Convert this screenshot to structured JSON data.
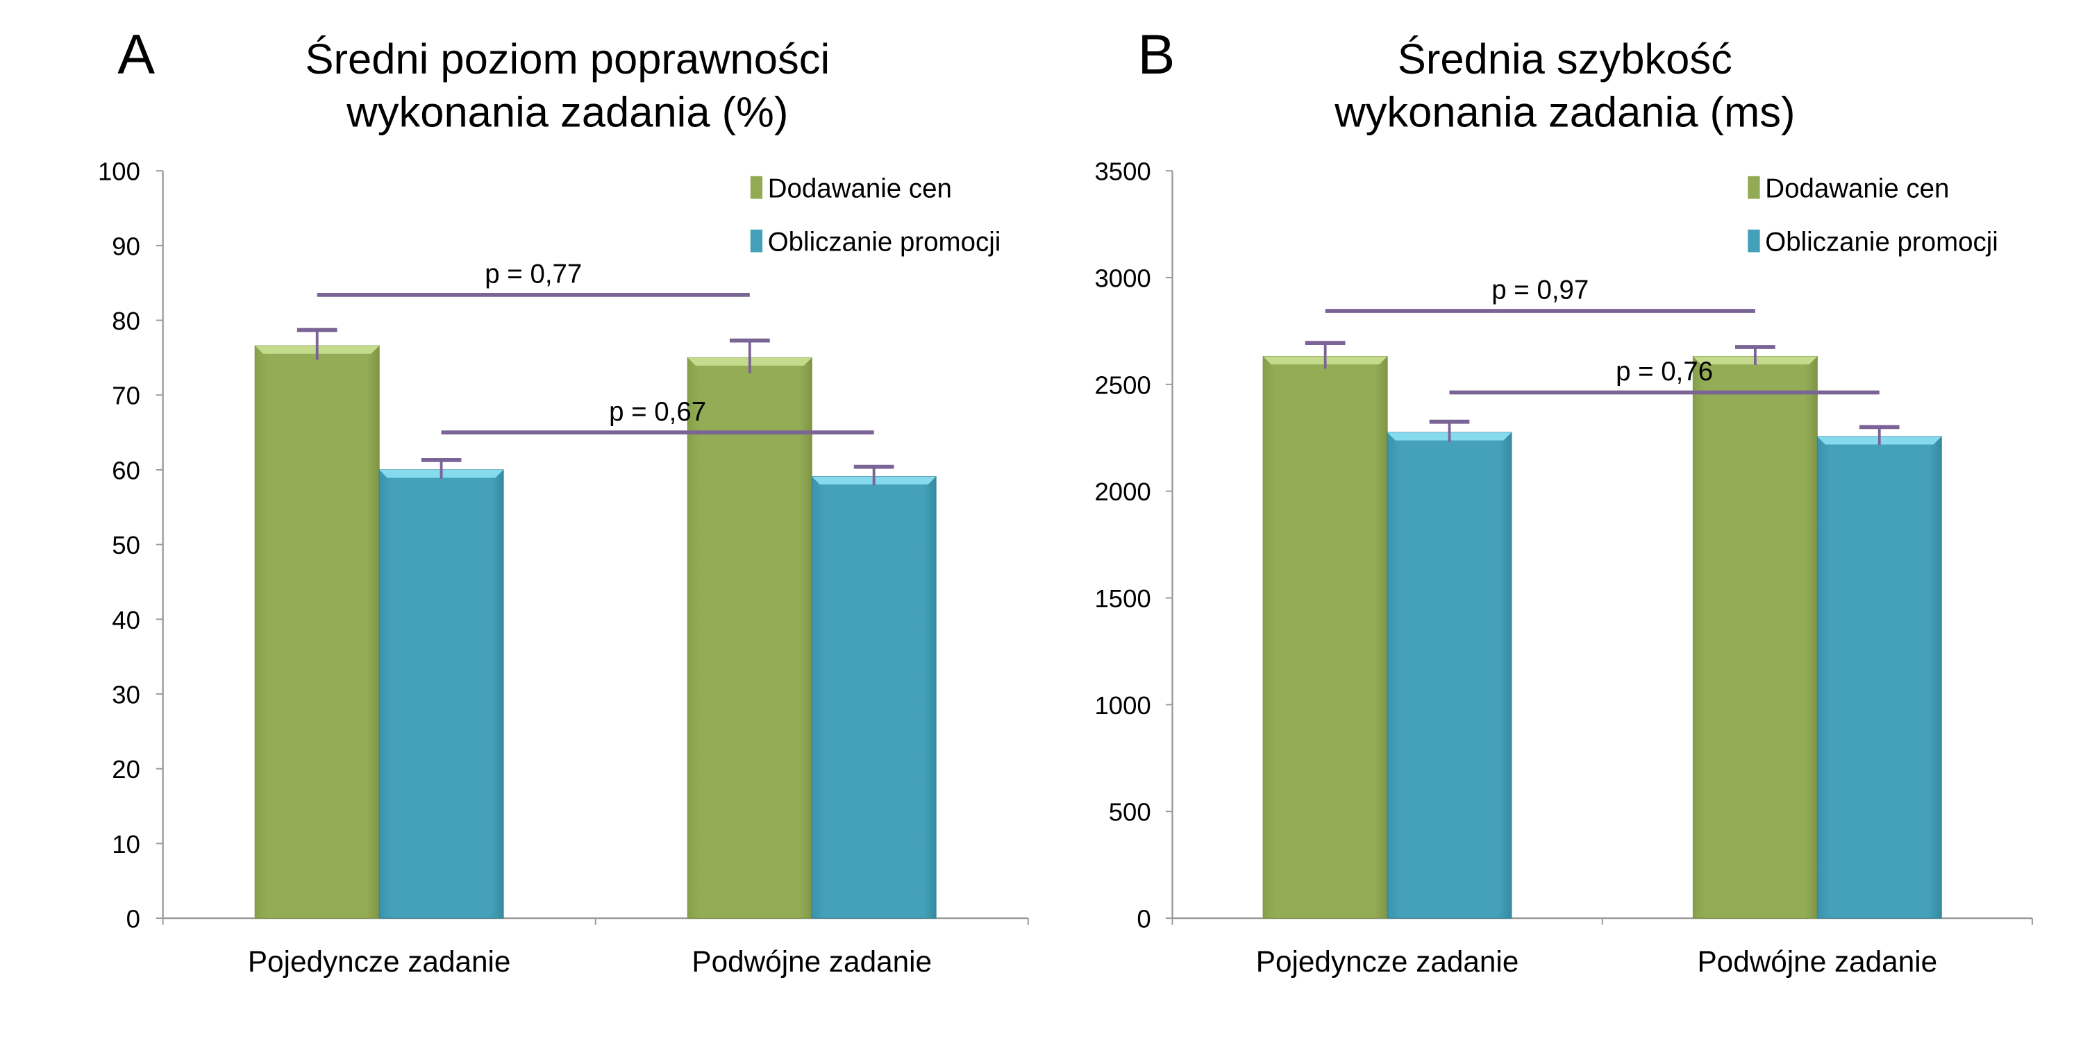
{
  "chart_data": [
    {
      "type": "bar",
      "panel_label": "A",
      "title_lines": [
        "Średni poziom poprawności",
        "wykonania zadania (%)"
      ],
      "categories": [
        "Pojedyncze zadanie",
        "Podwójne zadanie"
      ],
      "ylim": [
        0,
        100
      ],
      "yticks": [
        0,
        10,
        20,
        30,
        40,
        50,
        60,
        70,
        80,
        90,
        100
      ],
      "legend_position": "top-right",
      "series": [
        {
          "name": "Dodawanie cen",
          "color": "#93AA55",
          "values": [
            76.6,
            75.0
          ],
          "error_upper": [
            78.7,
            77.3
          ]
        },
        {
          "name": "Obliczanie promocji",
          "color": "#43A0B8",
          "values": [
            60.0,
            59.1
          ],
          "error_upper": [
            61.3,
            60.4
          ]
        }
      ],
      "annotations": [
        {
          "text": "p = 0,77",
          "y": 83.4,
          "from": [
            0,
            0
          ],
          "to": [
            1,
            0
          ]
        },
        {
          "text": "p = 0,67",
          "y": 65.0,
          "from": [
            0,
            1
          ],
          "to": [
            1,
            1
          ]
        }
      ]
    },
    {
      "type": "bar",
      "panel_label": "B",
      "title_lines": [
        "Średnia szybkość",
        "wykonania zadania (ms)"
      ],
      "categories": [
        "Pojedyncze zadanie",
        "Podwójne zadanie"
      ],
      "ylim": [
        0,
        3500
      ],
      "yticks": [
        0,
        500,
        1000,
        1500,
        2000,
        2500,
        3000,
        3500
      ],
      "legend_position": "top-right",
      "series": [
        {
          "name": "Dodawanie cen",
          "color": "#93AA55",
          "values": [
            2631,
            2631
          ],
          "error_upper": [
            2694,
            2675
          ]
        },
        {
          "name": "Obliczanie promocji",
          "color": "#43A0B8",
          "values": [
            2275,
            2256
          ],
          "error_upper": [
            2325,
            2300
          ]
        }
      ],
      "annotations": [
        {
          "text": "p = 0,97",
          "y": 2844,
          "from": [
            0,
            0
          ],
          "to": [
            1,
            0
          ]
        },
        {
          "text": "p = 0,76",
          "y": 2462,
          "from": [
            0,
            1
          ],
          "to": [
            1,
            1
          ]
        }
      ]
    }
  ],
  "colors": {
    "annotation": "#7A6395",
    "axis": "#999999",
    "text": "#000000"
  }
}
